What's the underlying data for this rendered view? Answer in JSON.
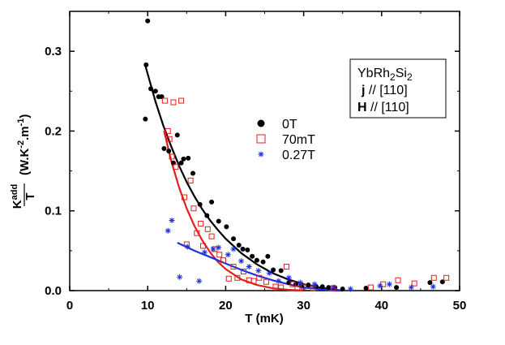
{
  "chart_data": {
    "type": "scatter",
    "title": "",
    "xlabel": "T (mK)",
    "ylabel": {
      "numerator": "K",
      "numerator_sup": "add",
      "denominator": "T",
      "unit": "(W.K",
      "unit_sup1": "-2",
      "unit_mid": ".m",
      "unit_sup2": "-1",
      "unit_end": ")"
    },
    "xlim": [
      0,
      50
    ],
    "ylim": [
      0,
      0.35
    ],
    "xticks": [
      0,
      10,
      20,
      30,
      40,
      50
    ],
    "yticks": [
      0.0,
      0.1,
      0.2,
      0.3
    ],
    "grid": false,
    "legend_position": "center-right",
    "info_box": {
      "line1_pre": "YbRh",
      "line1_sub1": "2",
      "line1_mid": "Si",
      "line1_sub2": "2",
      "line2_bold": "j",
      "line2_rest": " // [110]",
      "line3_bold": "H",
      "line3_rest": " // [110]"
    },
    "series": [
      {
        "name": "0T",
        "marker": "filled-circle",
        "color": "#000000",
        "points": [
          [
            9.7,
            0.215
          ],
          [
            9.8,
            0.283
          ],
          [
            10.0,
            0.338
          ],
          [
            10.4,
            0.253
          ],
          [
            11.0,
            0.25
          ],
          [
            11.4,
            0.243
          ],
          [
            11.8,
            0.243
          ],
          [
            12.1,
            0.178
          ],
          [
            12.7,
            0.175
          ],
          [
            13.3,
            0.16
          ],
          [
            13.8,
            0.195
          ],
          [
            14.3,
            0.16
          ],
          [
            14.6,
            0.165
          ],
          [
            15.2,
            0.166
          ],
          [
            15.8,
            0.147
          ],
          [
            16.7,
            0.108
          ],
          [
            17.6,
            0.094
          ],
          [
            18.2,
            0.111
          ],
          [
            19.1,
            0.087
          ],
          [
            20.1,
            0.08
          ],
          [
            21.0,
            0.065
          ],
          [
            21.7,
            0.057
          ],
          [
            22.2,
            0.052
          ],
          [
            22.8,
            0.051
          ],
          [
            23.4,
            0.043
          ],
          [
            24.0,
            0.038
          ],
          [
            24.8,
            0.036
          ],
          [
            25.4,
            0.043
          ],
          [
            26.1,
            0.026
          ],
          [
            27.1,
            0.025
          ],
          [
            28.1,
            0.01
          ],
          [
            29.0,
            0.008
          ],
          [
            29.7,
            0.006
          ],
          [
            30.6,
            0.007
          ],
          [
            31.6,
            0.005
          ],
          [
            32.4,
            0.005
          ],
          [
            33.2,
            0.004
          ],
          [
            34.0,
            0.004
          ],
          [
            35.0,
            0.002
          ],
          [
            38.0,
            0.003
          ],
          [
            41.9,
            0.004
          ],
          [
            46.2,
            0.01
          ],
          [
            47.8,
            0.011
          ]
        ]
      },
      {
        "name": "70mT",
        "marker": "open-square",
        "color": "#e0201c",
        "points": [
          [
            12.2,
            0.238
          ],
          [
            12.6,
            0.2
          ],
          [
            12.8,
            0.19
          ],
          [
            13.1,
            0.168
          ],
          [
            13.3,
            0.236
          ],
          [
            13.6,
            0.155
          ],
          [
            14.3,
            0.238
          ],
          [
            14.7,
            0.117
          ],
          [
            15.0,
            0.058
          ],
          [
            15.5,
            0.138
          ],
          [
            15.9,
            0.103
          ],
          [
            16.3,
            0.072
          ],
          [
            16.8,
            0.084
          ],
          [
            17.1,
            0.056
          ],
          [
            17.7,
            0.077
          ],
          [
            18.2,
            0.068
          ],
          [
            18.6,
            0.052
          ],
          [
            19.2,
            0.045
          ],
          [
            19.7,
            0.038
          ],
          [
            20.4,
            0.015
          ],
          [
            21.0,
            0.03
          ],
          [
            21.5,
            0.016
          ],
          [
            22.3,
            0.024
          ],
          [
            23.0,
            0.013
          ],
          [
            23.6,
            0.012
          ],
          [
            24.3,
            0.016
          ],
          [
            25.2,
            0.011
          ],
          [
            26.4,
            0.005
          ],
          [
            27.1,
            0.004
          ],
          [
            27.8,
            0.03
          ],
          [
            28.6,
            0.008
          ],
          [
            29.2,
            0.003
          ],
          [
            30.0,
            0.005
          ],
          [
            31.2,
            0.003
          ],
          [
            33.8,
            0.003
          ],
          [
            38.6,
            0.004
          ],
          [
            40.2,
            0.008
          ],
          [
            42.1,
            0.013
          ],
          [
            44.2,
            0.009
          ],
          [
            46.7,
            0.016
          ],
          [
            48.3,
            0.016
          ]
        ]
      },
      {
        "name": "0.27T",
        "marker": "asterisk",
        "color": "#1f2fe0",
        "points": [
          [
            12.6,
            0.075
          ],
          [
            13.1,
            0.088
          ],
          [
            14.1,
            0.017
          ],
          [
            15.1,
            0.055
          ],
          [
            16.6,
            0.012
          ],
          [
            17.3,
            0.048
          ],
          [
            18.4,
            0.052
          ],
          [
            19.1,
            0.054
          ],
          [
            20.3,
            0.045
          ],
          [
            21.0,
            0.052
          ],
          [
            22.0,
            0.037
          ],
          [
            23.0,
            0.03
          ],
          [
            24.2,
            0.025
          ],
          [
            25.6,
            0.022
          ],
          [
            26.8,
            0.012
          ],
          [
            28.1,
            0.016
          ],
          [
            29.6,
            0.01
          ],
          [
            31.4,
            0.008
          ],
          [
            33.8,
            0.004
          ],
          [
            36.0,
            0.002
          ],
          [
            39.8,
            0.006
          ],
          [
            41.0,
            0.008
          ],
          [
            43.8,
            0.004
          ],
          [
            46.6,
            0.005
          ]
        ]
      }
    ],
    "fits": [
      {
        "series": "0T",
        "color": "#000000",
        "points": [
          [
            9.7,
            0.282
          ],
          [
            11,
            0.237
          ],
          [
            12,
            0.207
          ],
          [
            13,
            0.181
          ],
          [
            14,
            0.157
          ],
          [
            15,
            0.136
          ],
          [
            16,
            0.118
          ],
          [
            17,
            0.102
          ],
          [
            18,
            0.088
          ],
          [
            19,
            0.076
          ],
          [
            20,
            0.065
          ],
          [
            22,
            0.047
          ],
          [
            24,
            0.033
          ],
          [
            26,
            0.022
          ],
          [
            28,
            0.014
          ],
          [
            30,
            0.008
          ],
          [
            32,
            0.004
          ],
          [
            34,
            0.001
          ],
          [
            35,
            0.0
          ]
        ]
      },
      {
        "series": "70mT",
        "color": "#e0201c",
        "points": [
          [
            12.1,
            0.2
          ],
          [
            13,
            0.163
          ],
          [
            14,
            0.13
          ],
          [
            15,
            0.103
          ],
          [
            16,
            0.081
          ],
          [
            17,
            0.063
          ],
          [
            18,
            0.048
          ],
          [
            19,
            0.036
          ],
          [
            20,
            0.027
          ],
          [
            22,
            0.014
          ],
          [
            24,
            0.007
          ],
          [
            26,
            0.003
          ],
          [
            28,
            0.001
          ],
          [
            30,
            0.0
          ]
        ]
      },
      {
        "series": "0.27T",
        "color": "#1f2fe0",
        "points": [
          [
            13.8,
            0.06
          ],
          [
            16,
            0.05
          ],
          [
            18,
            0.042
          ],
          [
            20,
            0.034
          ],
          [
            22,
            0.026
          ],
          [
            24,
            0.019
          ],
          [
            26,
            0.013
          ],
          [
            28,
            0.008
          ],
          [
            30,
            0.004
          ],
          [
            32,
            0.002
          ],
          [
            34,
            0.0
          ],
          [
            35,
            0.0
          ]
        ]
      }
    ]
  }
}
